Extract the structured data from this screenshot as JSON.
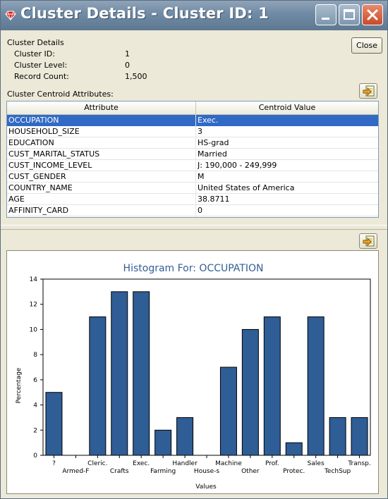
{
  "window": {
    "title": "Cluster Details - Cluster ID: 1"
  },
  "details": {
    "heading": "Cluster Details",
    "fields": [
      {
        "label": "Cluster ID:",
        "value": "1"
      },
      {
        "label": "Cluster Level:",
        "value": "0"
      },
      {
        "label": "Record Count:",
        "value": "1,500"
      }
    ],
    "close_label": "Close"
  },
  "centroid": {
    "label": "Cluster Centroid Attributes:",
    "columns": [
      "Attribute",
      "Centroid Value"
    ],
    "rows": [
      {
        "attribute": "OCCUPATION",
        "value": "Exec.",
        "selected": true
      },
      {
        "attribute": "HOUSEHOLD_SIZE",
        "value": "3"
      },
      {
        "attribute": "EDUCATION",
        "value": "HS-grad"
      },
      {
        "attribute": "CUST_MARITAL_STATUS",
        "value": "Married"
      },
      {
        "attribute": "CUST_INCOME_LEVEL",
        "value": "J: 190,000 - 249,999"
      },
      {
        "attribute": "CUST_GENDER",
        "value": "M"
      },
      {
        "attribute": "COUNTRY_NAME",
        "value": "United States of America"
      },
      {
        "attribute": "AGE",
        "value": "38.8711"
      },
      {
        "attribute": "AFFINITY_CARD",
        "value": "0"
      }
    ]
  },
  "colors": {
    "bar": "#2f5d95",
    "title": "#335f95",
    "selection": "#316ac5"
  },
  "icons": {
    "export": "export-icon",
    "app": "cluster-gem-icon"
  },
  "chart_data": {
    "type": "bar",
    "title": "Histogram For: OCCUPATION",
    "xlabel": "Values",
    "ylabel": "Percentage",
    "ylim": [
      0,
      14
    ],
    "yticks": [
      0,
      2,
      4,
      6,
      8,
      10,
      12,
      14
    ],
    "categories": [
      "?",
      "Armed-F",
      "Cleric.",
      "Crafts",
      "Exec.",
      "Farming",
      "Handler",
      "House-s",
      "Machine",
      "Other",
      "Prof.",
      "Protec.",
      "Sales",
      "TechSup",
      "Transp."
    ],
    "values": [
      5,
      0,
      11,
      13,
      13,
      2,
      3,
      0,
      7,
      10,
      11,
      1,
      11,
      3,
      3
    ],
    "grid": false,
    "legend": "none"
  }
}
